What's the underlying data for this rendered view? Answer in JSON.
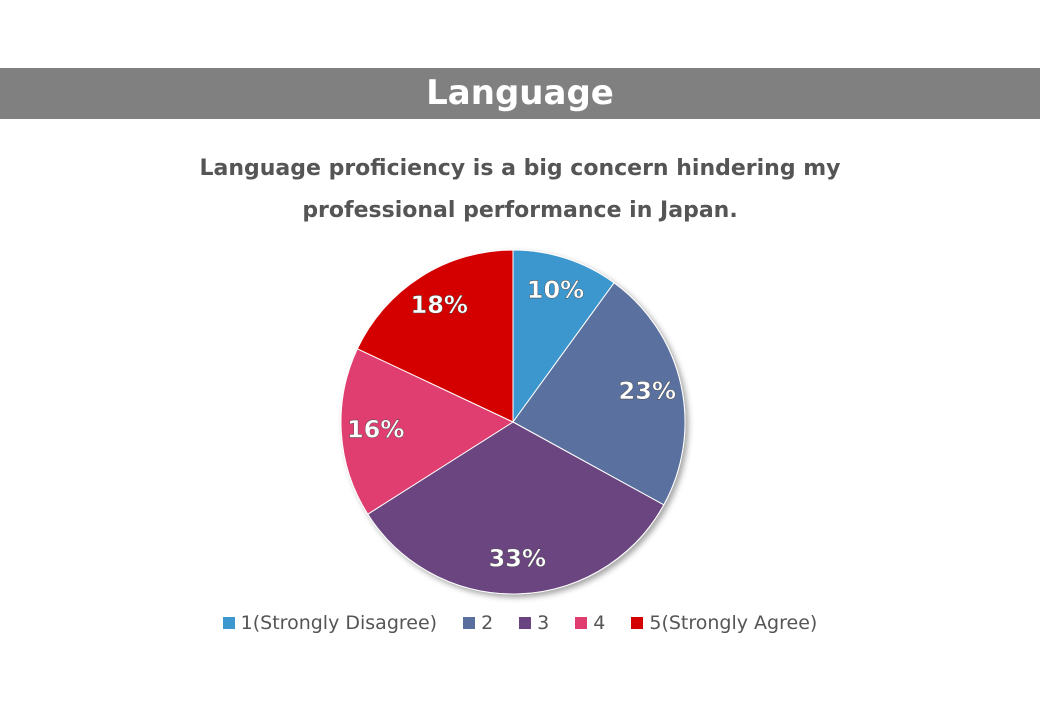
{
  "header": {
    "title": "Language"
  },
  "chart_data": {
    "type": "pie",
    "title": "Language proficiency is a big concern hindering my professional performance in Japan.",
    "categories": [
      "1(Strongly Disagree)",
      "2",
      "3",
      "4",
      "5(Strongly Agree)"
    ],
    "values": [
      10,
      23,
      33,
      16,
      18
    ],
    "value_labels": [
      "10%",
      "23%",
      "33%",
      "16%",
      "18%"
    ],
    "colors": [
      "#3c97cf",
      "#5a6f9e",
      "#6a4480",
      "#e03c6f",
      "#d40000"
    ],
    "legend": "bottom"
  }
}
